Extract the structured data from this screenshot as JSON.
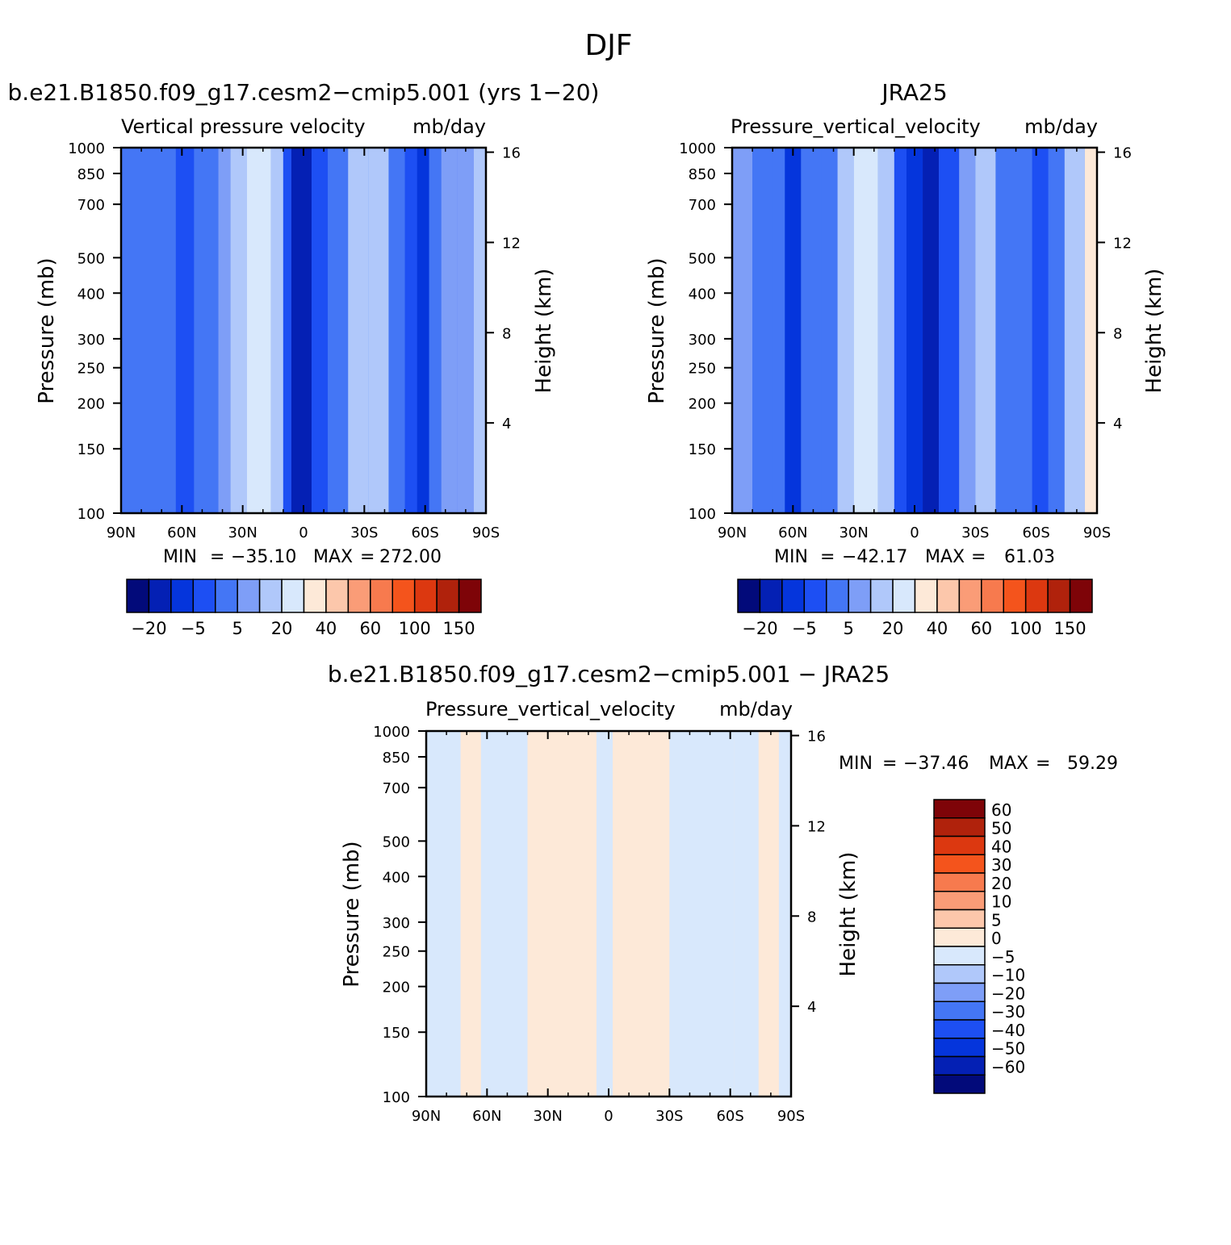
{
  "main_title": "DJF",
  "chart_data": [
    {
      "type": "heatmap",
      "id": "model",
      "title": "b.e21.B1850.f09_g17.cesm2−cmip5.001 (yrs 1−20)",
      "subtitle_left": "Vertical pressure velocity",
      "subtitle_right": "mb/day",
      "ylabel": "Pressure (mb)",
      "ylabel_right": "Height (km)",
      "x_ticks": [
        "90N",
        "60N",
        "30N",
        "0",
        "30S",
        "60S",
        "90S"
      ],
      "y_ticks": [
        "100",
        "150",
        "200",
        "250",
        "300",
        "400",
        "500",
        "700",
        "850",
        "1000"
      ],
      "y_ticks_right": [
        "16",
        "12",
        "8",
        "4"
      ],
      "min_label": "MIN",
      "min_value": "−35.10",
      "max_label": "MAX",
      "max_value": "272.00",
      "colorbar_labels": [
        "−20",
        "−5",
        "5",
        "20",
        "40",
        "60",
        "100",
        "150"
      ],
      "colorbar_colors": [
        "#020a7a",
        "#0420b4",
        "#0535dc",
        "#1d4ff3",
        "#4476f5",
        "#7e9ef7",
        "#b0c8fa",
        "#d8e8fc",
        "#fde9d8",
        "#fcc7ab",
        "#fa9c77",
        "#f77a4e",
        "#f4541c",
        "#dc3810",
        "#b0220c",
        "#7e0408"
      ],
      "lat_bands": [
        {
          "lat_from": 90,
          "lat_to": 78,
          "value": 2
        },
        {
          "lat_from": 78,
          "lat_to": 72,
          "value": 4
        },
        {
          "lat_from": 72,
          "lat_to": 63,
          "value": 1
        },
        {
          "lat_from": 63,
          "lat_to": 54,
          "value": -5
        },
        {
          "lat_from": 54,
          "lat_to": 42,
          "value": 2
        },
        {
          "lat_from": 42,
          "lat_to": 36,
          "value": 5
        },
        {
          "lat_from": 36,
          "lat_to": 28,
          "value": 12
        },
        {
          "lat_from": 28,
          "lat_to": 16,
          "value": 20
        },
        {
          "lat_from": 16,
          "lat_to": 10,
          "value": 10
        },
        {
          "lat_from": 10,
          "lat_to": 6,
          "value": -3
        },
        {
          "lat_from": 6,
          "lat_to": -4,
          "value": -12
        },
        {
          "lat_from": -4,
          "lat_to": -12,
          "value": -4
        },
        {
          "lat_from": -12,
          "lat_to": -22,
          "value": 3
        },
        {
          "lat_from": -22,
          "lat_to": -32,
          "value": 12
        },
        {
          "lat_from": -32,
          "lat_to": -42,
          "value": 10
        },
        {
          "lat_from": -42,
          "lat_to": -50,
          "value": 3
        },
        {
          "lat_from": -50,
          "lat_to": -56,
          "value": -1
        },
        {
          "lat_from": -56,
          "lat_to": -62,
          "value": -8
        },
        {
          "lat_from": -62,
          "lat_to": -68,
          "value": 1
        },
        {
          "lat_from": -68,
          "lat_to": -76,
          "value": 5
        },
        {
          "lat_from": -76,
          "lat_to": -84,
          "value": 8
        },
        {
          "lat_from": -84,
          "lat_to": -90,
          "value": 12
        }
      ]
    },
    {
      "type": "heatmap",
      "id": "obs",
      "title": "JRA25",
      "subtitle_left": "Pressure_vertical_velocity",
      "subtitle_right": "mb/day",
      "ylabel": "Pressure (mb)",
      "ylabel_right": "Height (km)",
      "x_ticks": [
        "90N",
        "60N",
        "30N",
        "0",
        "30S",
        "60S",
        "90S"
      ],
      "y_ticks": [
        "100",
        "150",
        "200",
        "250",
        "300",
        "400",
        "500",
        "700",
        "850",
        "1000"
      ],
      "y_ticks_right": [
        "16",
        "12",
        "8",
        "4"
      ],
      "min_label": "MIN",
      "min_value": "−42.17",
      "max_label": "MAX",
      "max_value": "61.03",
      "colorbar_labels": [
        "−20",
        "−5",
        "5",
        "20",
        "40",
        "60",
        "100",
        "150"
      ],
      "colorbar_colors": [
        "#020a7a",
        "#0420b4",
        "#0535dc",
        "#1d4ff3",
        "#4476f5",
        "#7e9ef7",
        "#b0c8fa",
        "#d8e8fc",
        "#fde9d8",
        "#fcc7ab",
        "#fa9c77",
        "#f77a4e",
        "#f4541c",
        "#dc3810",
        "#b0220c",
        "#7e0408"
      ],
      "lat_bands": [
        {
          "lat_from": 90,
          "lat_to": 80,
          "value": 6
        },
        {
          "lat_from": 80,
          "lat_to": 70,
          "value": 4
        },
        {
          "lat_from": 70,
          "lat_to": 64,
          "value": 1
        },
        {
          "lat_from": 64,
          "lat_to": 56,
          "value": -6
        },
        {
          "lat_from": 56,
          "lat_to": 46,
          "value": 1
        },
        {
          "lat_from": 46,
          "lat_to": 38,
          "value": 4
        },
        {
          "lat_from": 38,
          "lat_to": 30,
          "value": 10
        },
        {
          "lat_from": 30,
          "lat_to": 18,
          "value": 20
        },
        {
          "lat_from": 18,
          "lat_to": 10,
          "value": 12
        },
        {
          "lat_from": 10,
          "lat_to": 4,
          "value": -4
        },
        {
          "lat_from": 4,
          "lat_to": -4,
          "value": -8
        },
        {
          "lat_from": -4,
          "lat_to": -12,
          "value": -14
        },
        {
          "lat_from": -12,
          "lat_to": -22,
          "value": -2
        },
        {
          "lat_from": -22,
          "lat_to": -30,
          "value": 8
        },
        {
          "lat_from": -30,
          "lat_to": -40,
          "value": 12
        },
        {
          "lat_from": -40,
          "lat_to": -50,
          "value": 4
        },
        {
          "lat_from": -50,
          "lat_to": -58,
          "value": 1
        },
        {
          "lat_from": -58,
          "lat_to": -66,
          "value": -4
        },
        {
          "lat_from": -66,
          "lat_to": -74,
          "value": 3
        },
        {
          "lat_from": -74,
          "lat_to": -84,
          "value": 12
        },
        {
          "lat_from": -84,
          "lat_to": -90,
          "value": 30
        }
      ]
    },
    {
      "type": "heatmap",
      "id": "diff",
      "title": "b.e21.B1850.f09_g17.cesm2−cmip5.001 − JRA25",
      "subtitle_left": "Pressure_vertical_velocity",
      "subtitle_right": "mb/day",
      "ylabel": "Pressure (mb)",
      "ylabel_right": "Height (km)",
      "x_ticks": [
        "90N",
        "60N",
        "30N",
        "0",
        "30S",
        "60S",
        "90S"
      ],
      "y_ticks": [
        "100",
        "150",
        "200",
        "250",
        "300",
        "400",
        "500",
        "700",
        "850",
        "1000"
      ],
      "y_ticks_right": [
        "16",
        "12",
        "8",
        "4"
      ],
      "min_label": "MIN",
      "min_value": "−37.46",
      "max_label": "MAX",
      "max_value": "59.29",
      "colorbar_labels": [
        "60",
        "50",
        "40",
        "30",
        "20",
        "10",
        "5",
        "0",
        "−5",
        "−10",
        "−20",
        "−30",
        "−40",
        "−50",
        "−60"
      ],
      "colorbar_colors": [
        "#7e0408",
        "#b0220c",
        "#dc3810",
        "#f4541c",
        "#f77a4e",
        "#fa9c77",
        "#fcc7ab",
        "#fde9d8",
        "#d8e8fc",
        "#b0c8fa",
        "#7e9ef7",
        "#4476f5",
        "#1d4ff3",
        "#0535dc",
        "#0420b4",
        "#020a7a"
      ],
      "lat_bands": [
        {
          "lat_from": 90,
          "lat_to": 73,
          "value": -2
        },
        {
          "lat_from": 73,
          "lat_to": 63,
          "value": 2
        },
        {
          "lat_from": 63,
          "lat_to": 40,
          "value": -2
        },
        {
          "lat_from": 40,
          "lat_to": 24,
          "value": 2
        },
        {
          "lat_from": 24,
          "lat_to": 18,
          "value": 3
        },
        {
          "lat_from": 18,
          "lat_to": 6,
          "value": 2
        },
        {
          "lat_from": 6,
          "lat_to": -2,
          "value": -2
        },
        {
          "lat_from": -2,
          "lat_to": -8,
          "value": 1
        },
        {
          "lat_from": -8,
          "lat_to": -20,
          "value": 3
        },
        {
          "lat_from": -20,
          "lat_to": -30,
          "value": 2
        },
        {
          "lat_from": -30,
          "lat_to": -44,
          "value": -1
        },
        {
          "lat_from": -44,
          "lat_to": -62,
          "value": -2
        },
        {
          "lat_from": -62,
          "lat_to": -74,
          "value": -2
        },
        {
          "lat_from": -74,
          "lat_to": -84,
          "value": 2
        },
        {
          "lat_from": -84,
          "lat_to": -90,
          "value": -2
        }
      ]
    }
  ]
}
